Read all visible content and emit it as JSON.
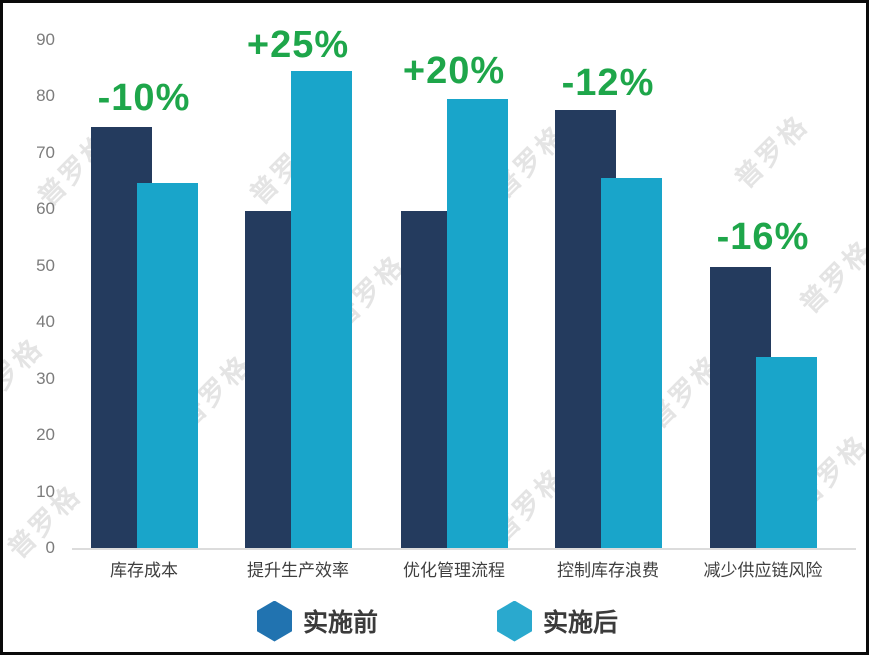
{
  "watermark": {
    "text": "普罗格",
    "color": "#E4E4E4"
  },
  "axis": {
    "tick_color": "#7C7C7C"
  },
  "chart_data": {
    "type": "bar",
    "title": "",
    "categories": [
      "库存成本",
      "提升生产效率",
      "优化管理流程",
      "控制库存浪费",
      "减少供应链风险"
    ],
    "series": [
      {
        "name": "实施前",
        "color": "#243B5E",
        "values": [
          75,
          60,
          60,
          78,
          50
        ]
      },
      {
        "name": "实施后",
        "color": "#19A5CA",
        "values": [
          65,
          85,
          80,
          66,
          34
        ]
      }
    ],
    "annotations": [
      "-10%",
      "+25%",
      "+20%",
      "-12%",
      "-16%"
    ],
    "annotation_color": "#1EA64A",
    "xlabel": "",
    "ylabel": "",
    "yticks": [
      0,
      10,
      20,
      30,
      40,
      50,
      60,
      70,
      80,
      90
    ],
    "ylim": [
      0,
      90
    ],
    "grid": false,
    "bar_style": "overlapped",
    "legend_position": "bottom"
  },
  "legend": {
    "items": [
      {
        "label": "实施前",
        "color": "#2173B0",
        "shape": "hexagon"
      },
      {
        "label": "实施后",
        "color": "#2AA9CE",
        "shape": "hexagon"
      }
    ]
  }
}
